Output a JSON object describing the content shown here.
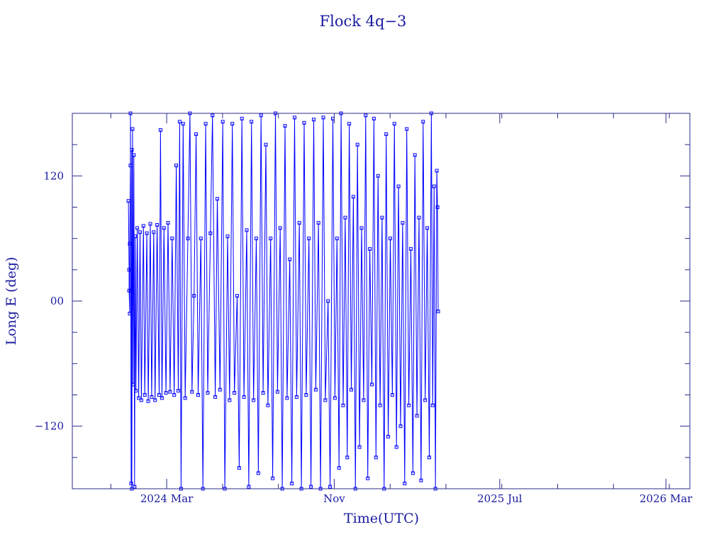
{
  "chart_data": {
    "type": "line",
    "title": "Flock 4q−3",
    "xlabel": "Time(UTC)",
    "ylabel": "Long E (deg)",
    "x_range": [
      "2023-10-15",
      "2026-04-05"
    ],
    "ylim": [
      -180,
      180
    ],
    "x_ticks": [
      {
        "label": "2024 Mar",
        "date": "2024-03-01"
      },
      {
        "label": "Nov",
        "date": "2024-11-01"
      },
      {
        "label": "2025 Jul",
        "date": "2025-07-01"
      },
      {
        "label": "2026 Mar",
        "date": "2026-03-01"
      }
    ],
    "y_ticks": [
      {
        "label": "120",
        "value": 120
      },
      {
        "label": "00",
        "value": 0
      },
      {
        "label": "−120",
        "value": -120
      }
    ],
    "grid": false,
    "marker": "square",
    "color": "#0000ff",
    "series": [
      {
        "points": [
          [
            "2024-01-05",
            96
          ],
          [
            "2024-01-06",
            30
          ],
          [
            "2024-01-06",
            10
          ],
          [
            "2024-01-07",
            -12
          ],
          [
            "2024-01-07",
            55
          ],
          [
            "2024-01-08",
            130
          ],
          [
            "2024-01-08",
            180
          ],
          [
            "2024-01-09",
            -175
          ],
          [
            "2024-01-10",
            145
          ],
          [
            "2024-01-10",
            -180
          ],
          [
            "2024-01-11",
            165
          ],
          [
            "2024-01-12",
            -80
          ],
          [
            "2024-01-13",
            140
          ],
          [
            "2024-01-14",
            -178
          ],
          [
            "2024-01-15",
            62
          ],
          [
            "2024-01-16",
            -86
          ],
          [
            "2024-01-18",
            70
          ],
          [
            "2024-01-20",
            -93
          ],
          [
            "2024-01-22",
            66
          ],
          [
            "2024-01-24",
            -95
          ],
          [
            "2024-01-27",
            72
          ],
          [
            "2024-01-29",
            -90
          ],
          [
            "2024-02-01",
            65
          ],
          [
            "2024-02-03",
            -96
          ],
          [
            "2024-02-06",
            74
          ],
          [
            "2024-02-08",
            -92
          ],
          [
            "2024-02-11",
            66
          ],
          [
            "2024-02-13",
            -95
          ],
          [
            "2024-02-16",
            73
          ],
          [
            "2024-02-19",
            -90
          ],
          [
            "2024-02-21",
            164
          ],
          [
            "2024-02-23",
            -93
          ],
          [
            "2024-02-26",
            70
          ],
          [
            "2024-02-29",
            -88
          ],
          [
            "2024-03-03",
            75
          ],
          [
            "2024-03-06",
            -87
          ],
          [
            "2024-03-09",
            60
          ],
          [
            "2024-03-12",
            -90
          ],
          [
            "2024-03-15",
            130
          ],
          [
            "2024-03-18",
            -86
          ],
          [
            "2024-03-20",
            172
          ],
          [
            "2024-03-22",
            -180
          ],
          [
            "2024-03-25",
            170
          ],
          [
            "2024-03-28",
            -93
          ],
          [
            "2024-04-01",
            60
          ],
          [
            "2024-04-04",
            180
          ],
          [
            "2024-04-07",
            -87
          ],
          [
            "2024-04-10",
            5
          ],
          [
            "2024-04-13",
            160
          ],
          [
            "2024-04-16",
            -90
          ],
          [
            "2024-04-20",
            60
          ],
          [
            "2024-04-23",
            -180
          ],
          [
            "2024-04-27",
            170
          ],
          [
            "2024-04-30",
            -88
          ],
          [
            "2024-05-04",
            65
          ],
          [
            "2024-05-07",
            178
          ],
          [
            "2024-05-11",
            -92
          ],
          [
            "2024-05-14",
            98
          ],
          [
            "2024-05-18",
            -85
          ],
          [
            "2024-05-22",
            172
          ],
          [
            "2024-05-25",
            -180
          ],
          [
            "2024-05-29",
            62
          ],
          [
            "2024-06-01",
            -95
          ],
          [
            "2024-06-05",
            170
          ],
          [
            "2024-06-08",
            -88
          ],
          [
            "2024-06-12",
            5
          ],
          [
            "2024-06-15",
            -160
          ],
          [
            "2024-06-19",
            175
          ],
          [
            "2024-06-22",
            -92
          ],
          [
            "2024-06-26",
            68
          ],
          [
            "2024-06-29",
            -178
          ],
          [
            "2024-07-03",
            172
          ],
          [
            "2024-07-06",
            -95
          ],
          [
            "2024-07-10",
            60
          ],
          [
            "2024-07-13",
            -165
          ],
          [
            "2024-07-17",
            178
          ],
          [
            "2024-07-20",
            -88
          ],
          [
            "2024-07-24",
            150
          ],
          [
            "2024-07-27",
            -100
          ],
          [
            "2024-07-31",
            60
          ],
          [
            "2024-08-03",
            -170
          ],
          [
            "2024-08-07",
            180
          ],
          [
            "2024-08-10",
            -87
          ],
          [
            "2024-08-14",
            70
          ],
          [
            "2024-08-17",
            -180
          ],
          [
            "2024-08-21",
            168
          ],
          [
            "2024-08-24",
            -93
          ],
          [
            "2024-08-28",
            40
          ],
          [
            "2024-08-31",
            -175
          ],
          [
            "2024-09-04",
            176
          ],
          [
            "2024-09-07",
            -92
          ],
          [
            "2024-09-11",
            75
          ],
          [
            "2024-09-14",
            -180
          ],
          [
            "2024-09-18",
            171
          ],
          [
            "2024-09-21",
            -90
          ],
          [
            "2024-09-25",
            60
          ],
          [
            "2024-09-28",
            -178
          ],
          [
            "2024-10-02",
            174
          ],
          [
            "2024-10-05",
            -85
          ],
          [
            "2024-10-09",
            75
          ],
          [
            "2024-10-12",
            -180
          ],
          [
            "2024-10-16",
            176
          ],
          [
            "2024-10-19",
            -95
          ],
          [
            "2024-10-23",
            0
          ],
          [
            "2024-10-26",
            -178
          ],
          [
            "2024-10-30",
            175
          ],
          [
            "2024-11-02",
            -93
          ],
          [
            "2024-11-05",
            60
          ],
          [
            "2024-11-08",
            -160
          ],
          [
            "2024-11-11",
            180
          ],
          [
            "2024-11-14",
            -100
          ],
          [
            "2024-11-17",
            80
          ],
          [
            "2024-11-20",
            -150
          ],
          [
            "2024-11-23",
            170
          ],
          [
            "2024-11-26",
            -85
          ],
          [
            "2024-11-29",
            100
          ],
          [
            "2024-12-02",
            -180
          ],
          [
            "2024-12-05",
            150
          ],
          [
            "2024-12-08",
            -140
          ],
          [
            "2024-12-11",
            70
          ],
          [
            "2024-12-14",
            -95
          ],
          [
            "2024-12-17",
            178
          ],
          [
            "2024-12-20",
            -170
          ],
          [
            "2024-12-23",
            50
          ],
          [
            "2024-12-26",
            -80
          ],
          [
            "2024-12-29",
            175
          ],
          [
            "2025-01-01",
            -150
          ],
          [
            "2025-01-04",
            120
          ],
          [
            "2025-01-07",
            -100
          ],
          [
            "2025-01-10",
            80
          ],
          [
            "2025-01-13",
            -180
          ],
          [
            "2025-01-16",
            160
          ],
          [
            "2025-01-19",
            -130
          ],
          [
            "2025-01-22",
            60
          ],
          [
            "2025-01-25",
            -90
          ],
          [
            "2025-01-28",
            170
          ],
          [
            "2025-01-31",
            -140
          ],
          [
            "2025-02-03",
            110
          ],
          [
            "2025-02-06",
            -120
          ],
          [
            "2025-02-09",
            75
          ],
          [
            "2025-02-12",
            -175
          ],
          [
            "2025-02-15",
            165
          ],
          [
            "2025-02-18",
            -100
          ],
          [
            "2025-02-21",
            50
          ],
          [
            "2025-02-24",
            -165
          ],
          [
            "2025-02-27",
            140
          ],
          [
            "2025-03-02",
            -110
          ],
          [
            "2025-03-05",
            80
          ],
          [
            "2025-03-08",
            -172
          ],
          [
            "2025-03-11",
            172
          ],
          [
            "2025-03-14",
            -95
          ],
          [
            "2025-03-17",
            70
          ],
          [
            "2025-03-20",
            -150
          ],
          [
            "2025-03-23",
            180
          ],
          [
            "2025-03-25",
            -100
          ],
          [
            "2025-03-27",
            110
          ],
          [
            "2025-03-29",
            -180
          ],
          [
            "2025-03-31",
            125
          ],
          [
            "2025-04-01",
            90
          ],
          [
            "2025-04-02",
            -10
          ]
        ]
      }
    ]
  }
}
